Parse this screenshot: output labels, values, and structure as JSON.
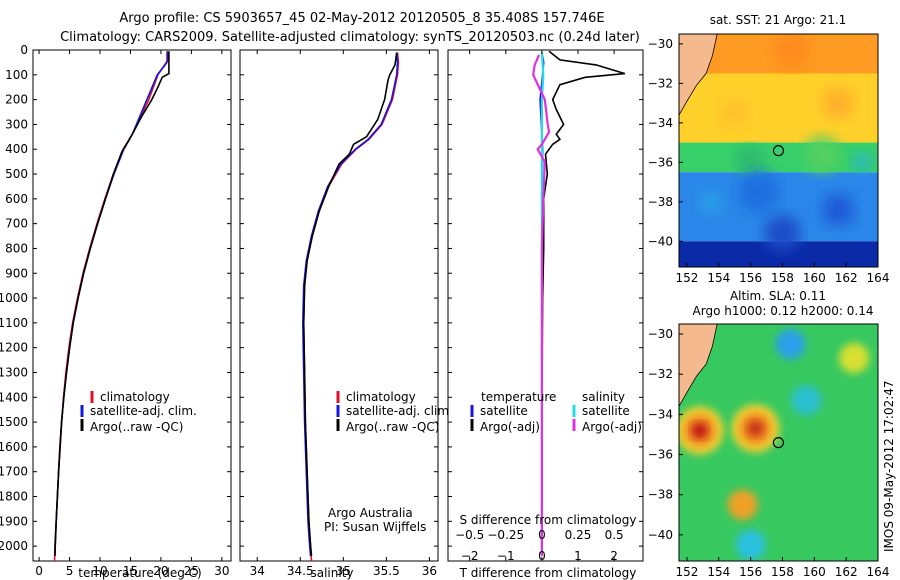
{
  "header": {
    "title_line1": "Argo profile: CS 5903657_45 02-May-2012 20120505_8 35.408S 157.746E",
    "title_line2": "Climatology: CARS2009. Satellite-adjusted climatology: synTS_20120503.nc (0.24d later)"
  },
  "credit": {
    "line1": "Argo Australia",
    "line2": "PI: Susan Wijffels"
  },
  "stamp": "IMOS 09-May-2012 17:02:47",
  "colors": {
    "climatology": "#e0102a",
    "satellite": "#1515dc",
    "argo": "#000000",
    "satellite_s": "#22dcea",
    "argo_s": "#e030e0",
    "land": "#f5b98e"
  },
  "chart_data": [
    {
      "type": "line",
      "title": "",
      "xlabel": "temperature (deg C)",
      "ylabel": "",
      "xlim": [
        -1,
        31.5
      ],
      "ylim": [
        2060,
        0
      ],
      "xticks": [
        0,
        5,
        10,
        15,
        20,
        25,
        30
      ],
      "yticks": [
        0,
        100,
        200,
        300,
        400,
        500,
        600,
        700,
        800,
        900,
        1000,
        1100,
        1200,
        1300,
        1400,
        1500,
        1600,
        1700,
        1800,
        1900,
        2000
      ],
      "legend": [
        "climatology",
        "satellite-adj. clim.",
        "Argo(..raw -QC)"
      ],
      "legend_position": "lower-right",
      "series": [
        {
          "name": "climatology",
          "color": "#e0102a",
          "points": [
            [
              21,
              5
            ],
            [
              21,
              45
            ],
            [
              20.6,
              60
            ],
            [
              19.5,
              100
            ],
            [
              18,
              200
            ],
            [
              15.3,
              340
            ],
            [
              13.8,
              400
            ],
            [
              12.2,
              500
            ],
            [
              10.8,
              600
            ],
            [
              9.5,
              700
            ],
            [
              8.3,
              800
            ],
            [
              7.2,
              900
            ],
            [
              6.3,
              1000
            ],
            [
              5.5,
              1100
            ],
            [
              4.9,
              1200
            ],
            [
              4.4,
              1300
            ],
            [
              4.0,
              1400
            ],
            [
              3.7,
              1500
            ],
            [
              3.4,
              1600
            ],
            [
              3.2,
              1700
            ],
            [
              3.0,
              1800
            ],
            [
              2.8,
              1900
            ],
            [
              2.6,
              2000
            ],
            [
              2.55,
              2060
            ]
          ]
        },
        {
          "name": "satellite-adj. clim.",
          "color": "#1515dc",
          "points": [
            [
              21.1,
              5
            ],
            [
              21.1,
              45
            ],
            [
              20.7,
              60
            ],
            [
              19.4,
              100
            ],
            [
              17.7,
              200
            ],
            [
              15.3,
              340
            ],
            [
              13.9,
              400
            ],
            [
              12.3,
              500
            ],
            [
              10.9,
              600
            ],
            [
              9.6,
              700
            ],
            [
              8.4,
              800
            ],
            [
              7.3,
              900
            ],
            [
              6.4,
              1000
            ],
            [
              5.6,
              1100
            ],
            [
              5.0,
              1200
            ],
            [
              4.5,
              1300
            ],
            [
              4.05,
              1400
            ],
            [
              3.7,
              1500
            ],
            [
              3.45,
              1600
            ],
            [
              3.2,
              1700
            ],
            [
              3.0,
              1800
            ],
            [
              2.8,
              1900
            ],
            [
              2.65,
              2000
            ],
            [
              2.6,
              2040
            ]
          ]
        },
        {
          "name": "Argo(..raw -QC)",
          "color": "#000000",
          "points": [
            [
              21.3,
              5
            ],
            [
              21.3,
              95
            ],
            [
              20.2,
              110
            ],
            [
              19.5,
              150
            ],
            [
              18.5,
              200
            ],
            [
              16.8,
              270
            ],
            [
              15.5,
              330
            ],
            [
              14.6,
              370
            ],
            [
              13.6,
              410
            ],
            [
              12.2,
              500
            ],
            [
              10.9,
              600
            ],
            [
              9.6,
              700
            ],
            [
              8.4,
              800
            ],
            [
              7.3,
              900
            ],
            [
              6.4,
              1000
            ],
            [
              5.6,
              1100
            ],
            [
              5.0,
              1200
            ],
            [
              4.5,
              1300
            ],
            [
              4.05,
              1400
            ],
            [
              3.7,
              1500
            ],
            [
              3.45,
              1600
            ],
            [
              3.2,
              1700
            ],
            [
              3.0,
              1800
            ],
            [
              2.8,
              1900
            ],
            [
              2.65,
              2000
            ],
            [
              2.6,
              2040
            ]
          ]
        }
      ]
    },
    {
      "type": "line",
      "title": "",
      "xlabel": "salinity",
      "ylabel": "",
      "xlim": [
        33.8,
        36.1
      ],
      "ylim": [
        2060,
        0
      ],
      "xticks": [
        34,
        34.5,
        35,
        35.5,
        36
      ],
      "legend": [
        "climatology",
        "satellite-adj. clim.",
        "Argo(..raw -QC)"
      ],
      "legend_position": "lower-right",
      "series": [
        {
          "name": "climatology",
          "color": "#e0102a",
          "points": [
            [
              35.63,
              10
            ],
            [
              35.64,
              50
            ],
            [
              35.63,
              100
            ],
            [
              35.57,
              200
            ],
            [
              35.45,
              300
            ],
            [
              35.3,
              360
            ],
            [
              35.15,
              400
            ],
            [
              34.98,
              460
            ],
            [
              34.83,
              550
            ],
            [
              34.72,
              650
            ],
            [
              34.64,
              750
            ],
            [
              34.58,
              850
            ],
            [
              34.55,
              950
            ],
            [
              34.54,
              1100
            ],
            [
              34.55,
              1300
            ],
            [
              34.56,
              1500
            ],
            [
              34.58,
              1700
            ],
            [
              34.6,
              1900
            ],
            [
              34.62,
              2000
            ],
            [
              34.63,
              2060
            ]
          ]
        },
        {
          "name": "satellite-adj. clim.",
          "color": "#1515dc",
          "points": [
            [
              35.62,
              10
            ],
            [
              35.63,
              50
            ],
            [
              35.62,
              100
            ],
            [
              35.56,
              200
            ],
            [
              35.44,
              300
            ],
            [
              35.29,
              360
            ],
            [
              35.14,
              400
            ],
            [
              34.97,
              460
            ],
            [
              34.82,
              550
            ],
            [
              34.71,
              650
            ],
            [
              34.63,
              750
            ],
            [
              34.57,
              850
            ],
            [
              34.54,
              950
            ],
            [
              34.53,
              1100
            ],
            [
              34.54,
              1300
            ],
            [
              34.55,
              1500
            ],
            [
              34.57,
              1700
            ],
            [
              34.59,
              1900
            ],
            [
              34.61,
              2000
            ],
            [
              34.62,
              2040
            ]
          ]
        },
        {
          "name": "Argo(..raw -QC)",
          "color": "#000000",
          "points": [
            [
              35.62,
              10
            ],
            [
              35.6,
              60
            ],
            [
              35.54,
              100
            ],
            [
              35.52,
              120
            ],
            [
              35.48,
              200
            ],
            [
              35.4,
              280
            ],
            [
              35.27,
              350
            ],
            [
              35.12,
              380
            ],
            [
              35.07,
              420
            ],
            [
              34.95,
              460
            ],
            [
              34.83,
              550
            ],
            [
              34.72,
              650
            ],
            [
              34.64,
              750
            ],
            [
              34.58,
              850
            ],
            [
              34.55,
              950
            ],
            [
              34.54,
              1100
            ],
            [
              34.55,
              1300
            ],
            [
              34.56,
              1500
            ],
            [
              34.58,
              1700
            ],
            [
              34.6,
              1900
            ],
            [
              34.62,
              2000
            ],
            [
              34.63,
              2040
            ]
          ]
        }
      ]
    },
    {
      "type": "line",
      "title": "",
      "xlabel": "T difference from climatology",
      "xlabel_top": "S difference from climatology",
      "ylabel": "",
      "xlim": [
        -2.6,
        2.8
      ],
      "xlim_s": [
        -0.65,
        0.7
      ],
      "ylim": [
        2060,
        0
      ],
      "xticks_t": [
        -2,
        -1,
        0,
        1,
        2
      ],
      "xticks_s": [
        -0.5,
        -0.25,
        0,
        0.25,
        0.5
      ],
      "legend_t": {
        "heading": "temperature",
        "items": [
          "satellite",
          "Argo(-adj)"
        ]
      },
      "legend_s": {
        "heading": "salinity",
        "items": [
          "satellite",
          "Argo(-adj)"
        ]
      },
      "legend_position": "lower-left",
      "series": [
        {
          "name": "temperature satellite",
          "color": "#1515dc",
          "scale": "T",
          "points": [
            [
              0,
              10
            ],
            [
              0.05,
              50
            ],
            [
              0.02,
              100
            ],
            [
              -0.05,
              200
            ],
            [
              0.02,
              400
            ],
            [
              0,
              600
            ],
            [
              0,
              1000
            ],
            [
              0,
              1500
            ],
            [
              0,
              2040
            ]
          ]
        },
        {
          "name": "temperature Argo(-adj)",
          "color": "#000000",
          "scale": "T",
          "points": [
            [
              0.2,
              5
            ],
            [
              0.5,
              40
            ],
            [
              1.5,
              60
            ],
            [
              2.3,
              95
            ],
            [
              1.2,
              110
            ],
            [
              0.5,
              140
            ],
            [
              0.3,
              200
            ],
            [
              0.4,
              240
            ],
            [
              0.6,
              300
            ],
            [
              0.4,
              340
            ],
            [
              0.5,
              360
            ],
            [
              0.3,
              380
            ],
            [
              0.1,
              420
            ],
            [
              0.15,
              500
            ],
            [
              0.05,
              600
            ],
            [
              0.05,
              800
            ],
            [
              0.02,
              1000
            ],
            [
              0,
              1500
            ],
            [
              0,
              2040
            ]
          ]
        },
        {
          "name": "salinity satellite",
          "color": "#22dcea",
          "scale": "S",
          "points": [
            [
              0,
              10
            ],
            [
              0.01,
              100
            ],
            [
              0,
              200
            ],
            [
              0,
              600
            ],
            [
              0,
              1500
            ],
            [
              0,
              2040
            ]
          ]
        },
        {
          "name": "salinity Argo(-adj)",
          "color": "#e030e0",
          "scale": "S",
          "points": [
            [
              -0.02,
              20
            ],
            [
              -0.05,
              60
            ],
            [
              -0.06,
              100
            ],
            [
              0.02,
              200
            ],
            [
              0.04,
              300
            ],
            [
              0.05,
              330
            ],
            [
              0.03,
              350
            ],
            [
              0,
              380
            ],
            [
              -0.03,
              400
            ],
            [
              0.02,
              450
            ],
            [
              0.01,
              600
            ],
            [
              0,
              800
            ],
            [
              0,
              1500
            ],
            [
              0,
              2040
            ]
          ]
        }
      ]
    },
    {
      "type": "heatmap",
      "title": "sat. SST: 21 Argo: 21.1",
      "xlim": [
        151.5,
        164
      ],
      "ylim": [
        -41.3,
        -29.5
      ],
      "xticks": [
        152,
        154,
        156,
        158,
        160,
        162,
        164
      ],
      "yticks": [
        -30,
        -32,
        -34,
        -36,
        -38,
        -40
      ],
      "float_position": [
        157.746,
        -35.408
      ],
      "bands": [
        {
          "lat": [
            -29.5,
            -31.5
          ],
          "color": "#ff9b22"
        },
        {
          "lat": [
            -31.5,
            -35
          ],
          "color": "#ffd02a"
        },
        {
          "lat": [
            -35,
            -36.5
          ],
          "color": "#36cf6a"
        },
        {
          "lat": [
            -36.5,
            -40
          ],
          "color": "#2a86e8"
        },
        {
          "lat": [
            -40,
            -41.3
          ],
          "color": "#0a2aa8"
        }
      ]
    },
    {
      "type": "heatmap",
      "title_line1": "Altim. SLA: 0.11",
      "title_line2": "Argo h1000: 0.12 h2000: 0.14",
      "xlim": [
        151.5,
        164
      ],
      "ylim": [
        -41.3,
        -29.5
      ],
      "xticks": [
        152,
        154,
        156,
        158,
        160,
        162,
        164
      ],
      "yticks": [
        -30,
        -32,
        -34,
        -36,
        -38,
        -40
      ],
      "float_position": [
        157.746,
        -35.408
      ],
      "features": [
        {
          "kind": "warm-core",
          "lon": 152.8,
          "lat": -34.8,
          "color": "#c01818"
        },
        {
          "kind": "warm-core",
          "lon": 156.3,
          "lat": -34.7,
          "color": "#c83018"
        },
        {
          "kind": "warm",
          "lon": 155.5,
          "lat": -38.5,
          "color": "#f0a028"
        },
        {
          "kind": "cool",
          "lon": 158.5,
          "lat": -30.5,
          "color": "#2aa0e8"
        },
        {
          "kind": "cool",
          "lon": 159.5,
          "lat": -33.3,
          "color": "#2ac0d0"
        },
        {
          "kind": "warm",
          "lon": 162.5,
          "lat": -31.2,
          "color": "#d8e030"
        },
        {
          "kind": "cool",
          "lon": 156,
          "lat": -40.5,
          "color": "#2ac0e0"
        }
      ]
    }
  ]
}
